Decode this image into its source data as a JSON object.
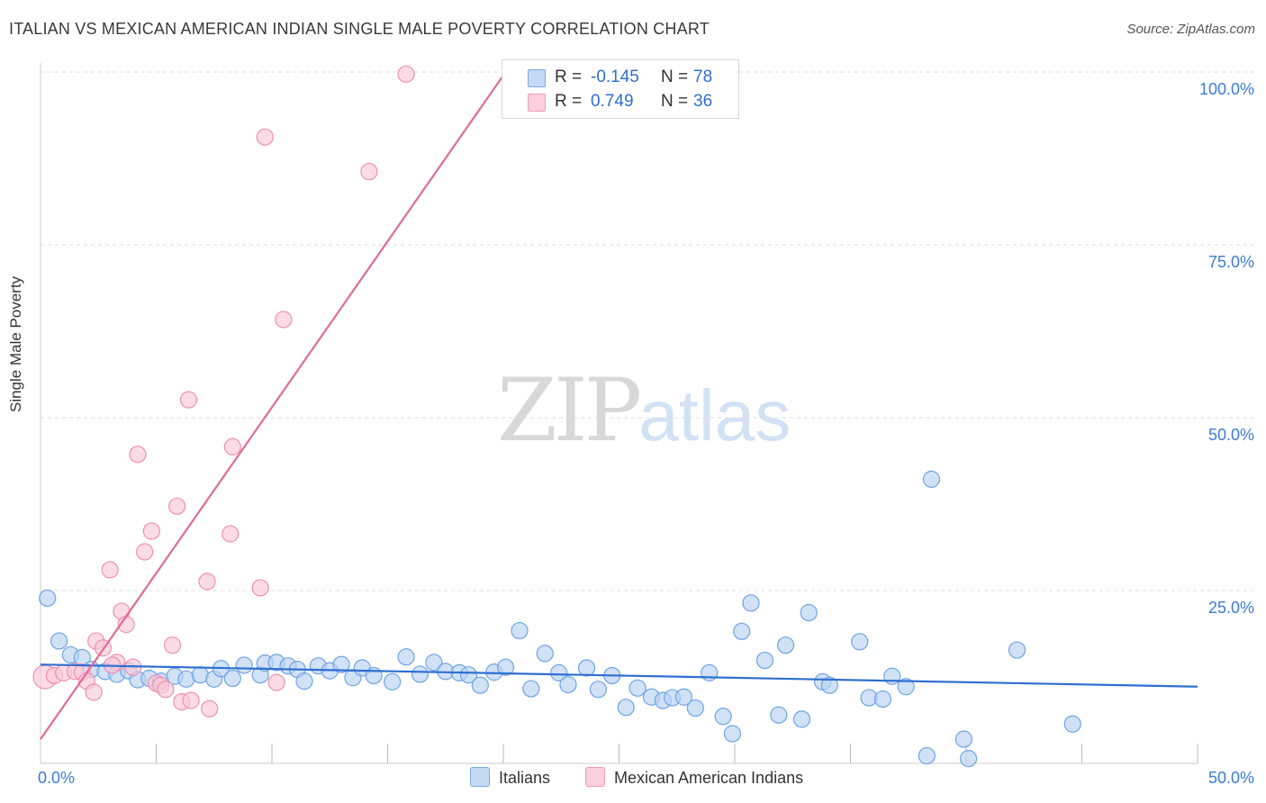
{
  "title": "ITALIAN VS MEXICAN AMERICAN INDIAN SINGLE MALE POVERTY CORRELATION CHART",
  "source": "Source: ZipAtlas.com",
  "watermark": {
    "zip": "ZIP",
    "atlas": "atlas"
  },
  "legend": {
    "italians": {
      "r_label": "R =",
      "r_value": "-0.145",
      "n_label": "N =",
      "n_value": "78",
      "color": "#a8c8f0"
    },
    "mexican": {
      "r_label": "R =",
      "r_value": "0.749",
      "n_label": "N =",
      "n_value": "36",
      "color": "#f7b8cb"
    }
  },
  "bottom_legend": {
    "italians": "Italians",
    "mexican": "Mexican American Indians"
  },
  "chart_data": {
    "type": "scatter",
    "xlabel": "",
    "ylabel": "Single Male Poverty",
    "xlim": [
      0,
      50
    ],
    "ylim": [
      0,
      105
    ],
    "x_ticks": [
      {
        "value": 0,
        "label": "0.0%"
      },
      {
        "value": 50,
        "label": "50.0%"
      }
    ],
    "y_ticks": [
      {
        "value": 25,
        "label": "25.0%"
      },
      {
        "value": 50,
        "label": "50.0%"
      },
      {
        "value": 75,
        "label": "75.0%"
      },
      {
        "value": 100,
        "label": "100.0%"
      }
    ],
    "grid": true,
    "series": [
      {
        "name": "Italians",
        "color": "#6fa3e6",
        "fill": "#b9d3f3",
        "trend": {
          "x": [
            0,
            50
          ],
          "y": [
            14.3,
            11.1
          ],
          "color": "#2f6fd1"
        },
        "points": [
          [
            0.3,
            23.9
          ],
          [
            0.8,
            17.7
          ],
          [
            1.3,
            15.7
          ],
          [
            1.8,
            15.3
          ],
          [
            2.2,
            13.6
          ],
          [
            2.8,
            13.3
          ],
          [
            3.3,
            12.9
          ],
          [
            3.8,
            13.4
          ],
          [
            4.2,
            12.1
          ],
          [
            4.7,
            12.3
          ],
          [
            5.2,
            11.9
          ],
          [
            5.8,
            12.6
          ],
          [
            6.3,
            12.2
          ],
          [
            6.9,
            12.8
          ],
          [
            7.5,
            12.2
          ],
          [
            7.8,
            13.7
          ],
          [
            8.3,
            12.3
          ],
          [
            8.8,
            14.2
          ],
          [
            9.5,
            12.8
          ],
          [
            9.7,
            14.5
          ],
          [
            10.2,
            14.6
          ],
          [
            10.7,
            14.1
          ],
          [
            11.1,
            13.6
          ],
          [
            11.4,
            11.9
          ],
          [
            12.0,
            14.1
          ],
          [
            12.5,
            13.4
          ],
          [
            13.0,
            14.3
          ],
          [
            13.5,
            12.4
          ],
          [
            13.9,
            13.8
          ],
          [
            14.4,
            12.7
          ],
          [
            15.2,
            11.8
          ],
          [
            15.8,
            15.4
          ],
          [
            16.4,
            12.9
          ],
          [
            17.0,
            14.6
          ],
          [
            17.5,
            13.3
          ],
          [
            18.1,
            13.1
          ],
          [
            18.5,
            12.8
          ],
          [
            19.0,
            11.3
          ],
          [
            19.6,
            13.2
          ],
          [
            20.1,
            13.9
          ],
          [
            20.7,
            19.2
          ],
          [
            21.2,
            10.8
          ],
          [
            21.8,
            15.9
          ],
          [
            22.4,
            13.1
          ],
          [
            22.8,
            11.4
          ],
          [
            23.6,
            13.8
          ],
          [
            24.1,
            10.7
          ],
          [
            24.7,
            12.7
          ],
          [
            25.3,
            8.1
          ],
          [
            25.8,
            10.9
          ],
          [
            26.4,
            9.6
          ],
          [
            26.9,
            9.1
          ],
          [
            27.3,
            9.5
          ],
          [
            27.8,
            9.6
          ],
          [
            28.3,
            8.0
          ],
          [
            28.9,
            13.1
          ],
          [
            29.5,
            6.8
          ],
          [
            29.9,
            4.3
          ],
          [
            30.3,
            19.1
          ],
          [
            30.7,
            23.2
          ],
          [
            31.3,
            14.9
          ],
          [
            31.9,
            7.0
          ],
          [
            32.2,
            17.1
          ],
          [
            32.9,
            6.4
          ],
          [
            33.2,
            21.8
          ],
          [
            33.8,
            11.8
          ],
          [
            34.1,
            11.3
          ],
          [
            35.4,
            17.6
          ],
          [
            35.8,
            9.5
          ],
          [
            36.4,
            9.3
          ],
          [
            36.8,
            12.6
          ],
          [
            37.4,
            11.1
          ],
          [
            38.3,
            1.1
          ],
          [
            38.5,
            41.1
          ],
          [
            39.9,
            3.5
          ],
          [
            40.1,
            0.7
          ],
          [
            42.2,
            16.4
          ],
          [
            44.6,
            5.7
          ]
        ]
      },
      {
        "name": "Mexican American Indians",
        "color": "#ee8fae",
        "fill": "#f9c9d8",
        "trend": {
          "x": [
            0,
            20.1
          ],
          "y": [
            3.5,
            100
          ],
          "color": "#e06c93"
        },
        "points": [
          [
            0.2,
            12.5
          ],
          [
            0.6,
            12.7
          ],
          [
            1.0,
            13.1
          ],
          [
            1.5,
            13.3
          ],
          [
            1.8,
            13.2
          ],
          [
            2.0,
            11.9
          ],
          [
            2.3,
            10.3
          ],
          [
            2.4,
            17.7
          ],
          [
            2.7,
            16.7
          ],
          [
            3.0,
            28.0
          ],
          [
            3.3,
            14.6
          ],
          [
            3.5,
            22.0
          ],
          [
            3.7,
            20.1
          ],
          [
            4.0,
            13.9
          ],
          [
            4.2,
            44.7
          ],
          [
            4.5,
            30.6
          ],
          [
            4.8,
            33.6
          ],
          [
            5.0,
            11.6
          ],
          [
            5.2,
            11.3
          ],
          [
            5.4,
            10.7
          ],
          [
            5.7,
            17.1
          ],
          [
            5.9,
            37.2
          ],
          [
            6.1,
            8.9
          ],
          [
            6.4,
            52.6
          ],
          [
            6.5,
            9.1
          ],
          [
            7.2,
            26.3
          ],
          [
            7.3,
            7.9
          ],
          [
            8.2,
            33.2
          ],
          [
            8.3,
            45.8
          ],
          [
            9.5,
            25.4
          ],
          [
            9.7,
            90.6
          ],
          [
            10.2,
            11.7
          ],
          [
            10.5,
            64.2
          ],
          [
            14.2,
            85.6
          ],
          [
            15.8,
            99.7
          ],
          [
            3.1,
            14.2
          ]
        ]
      }
    ]
  }
}
